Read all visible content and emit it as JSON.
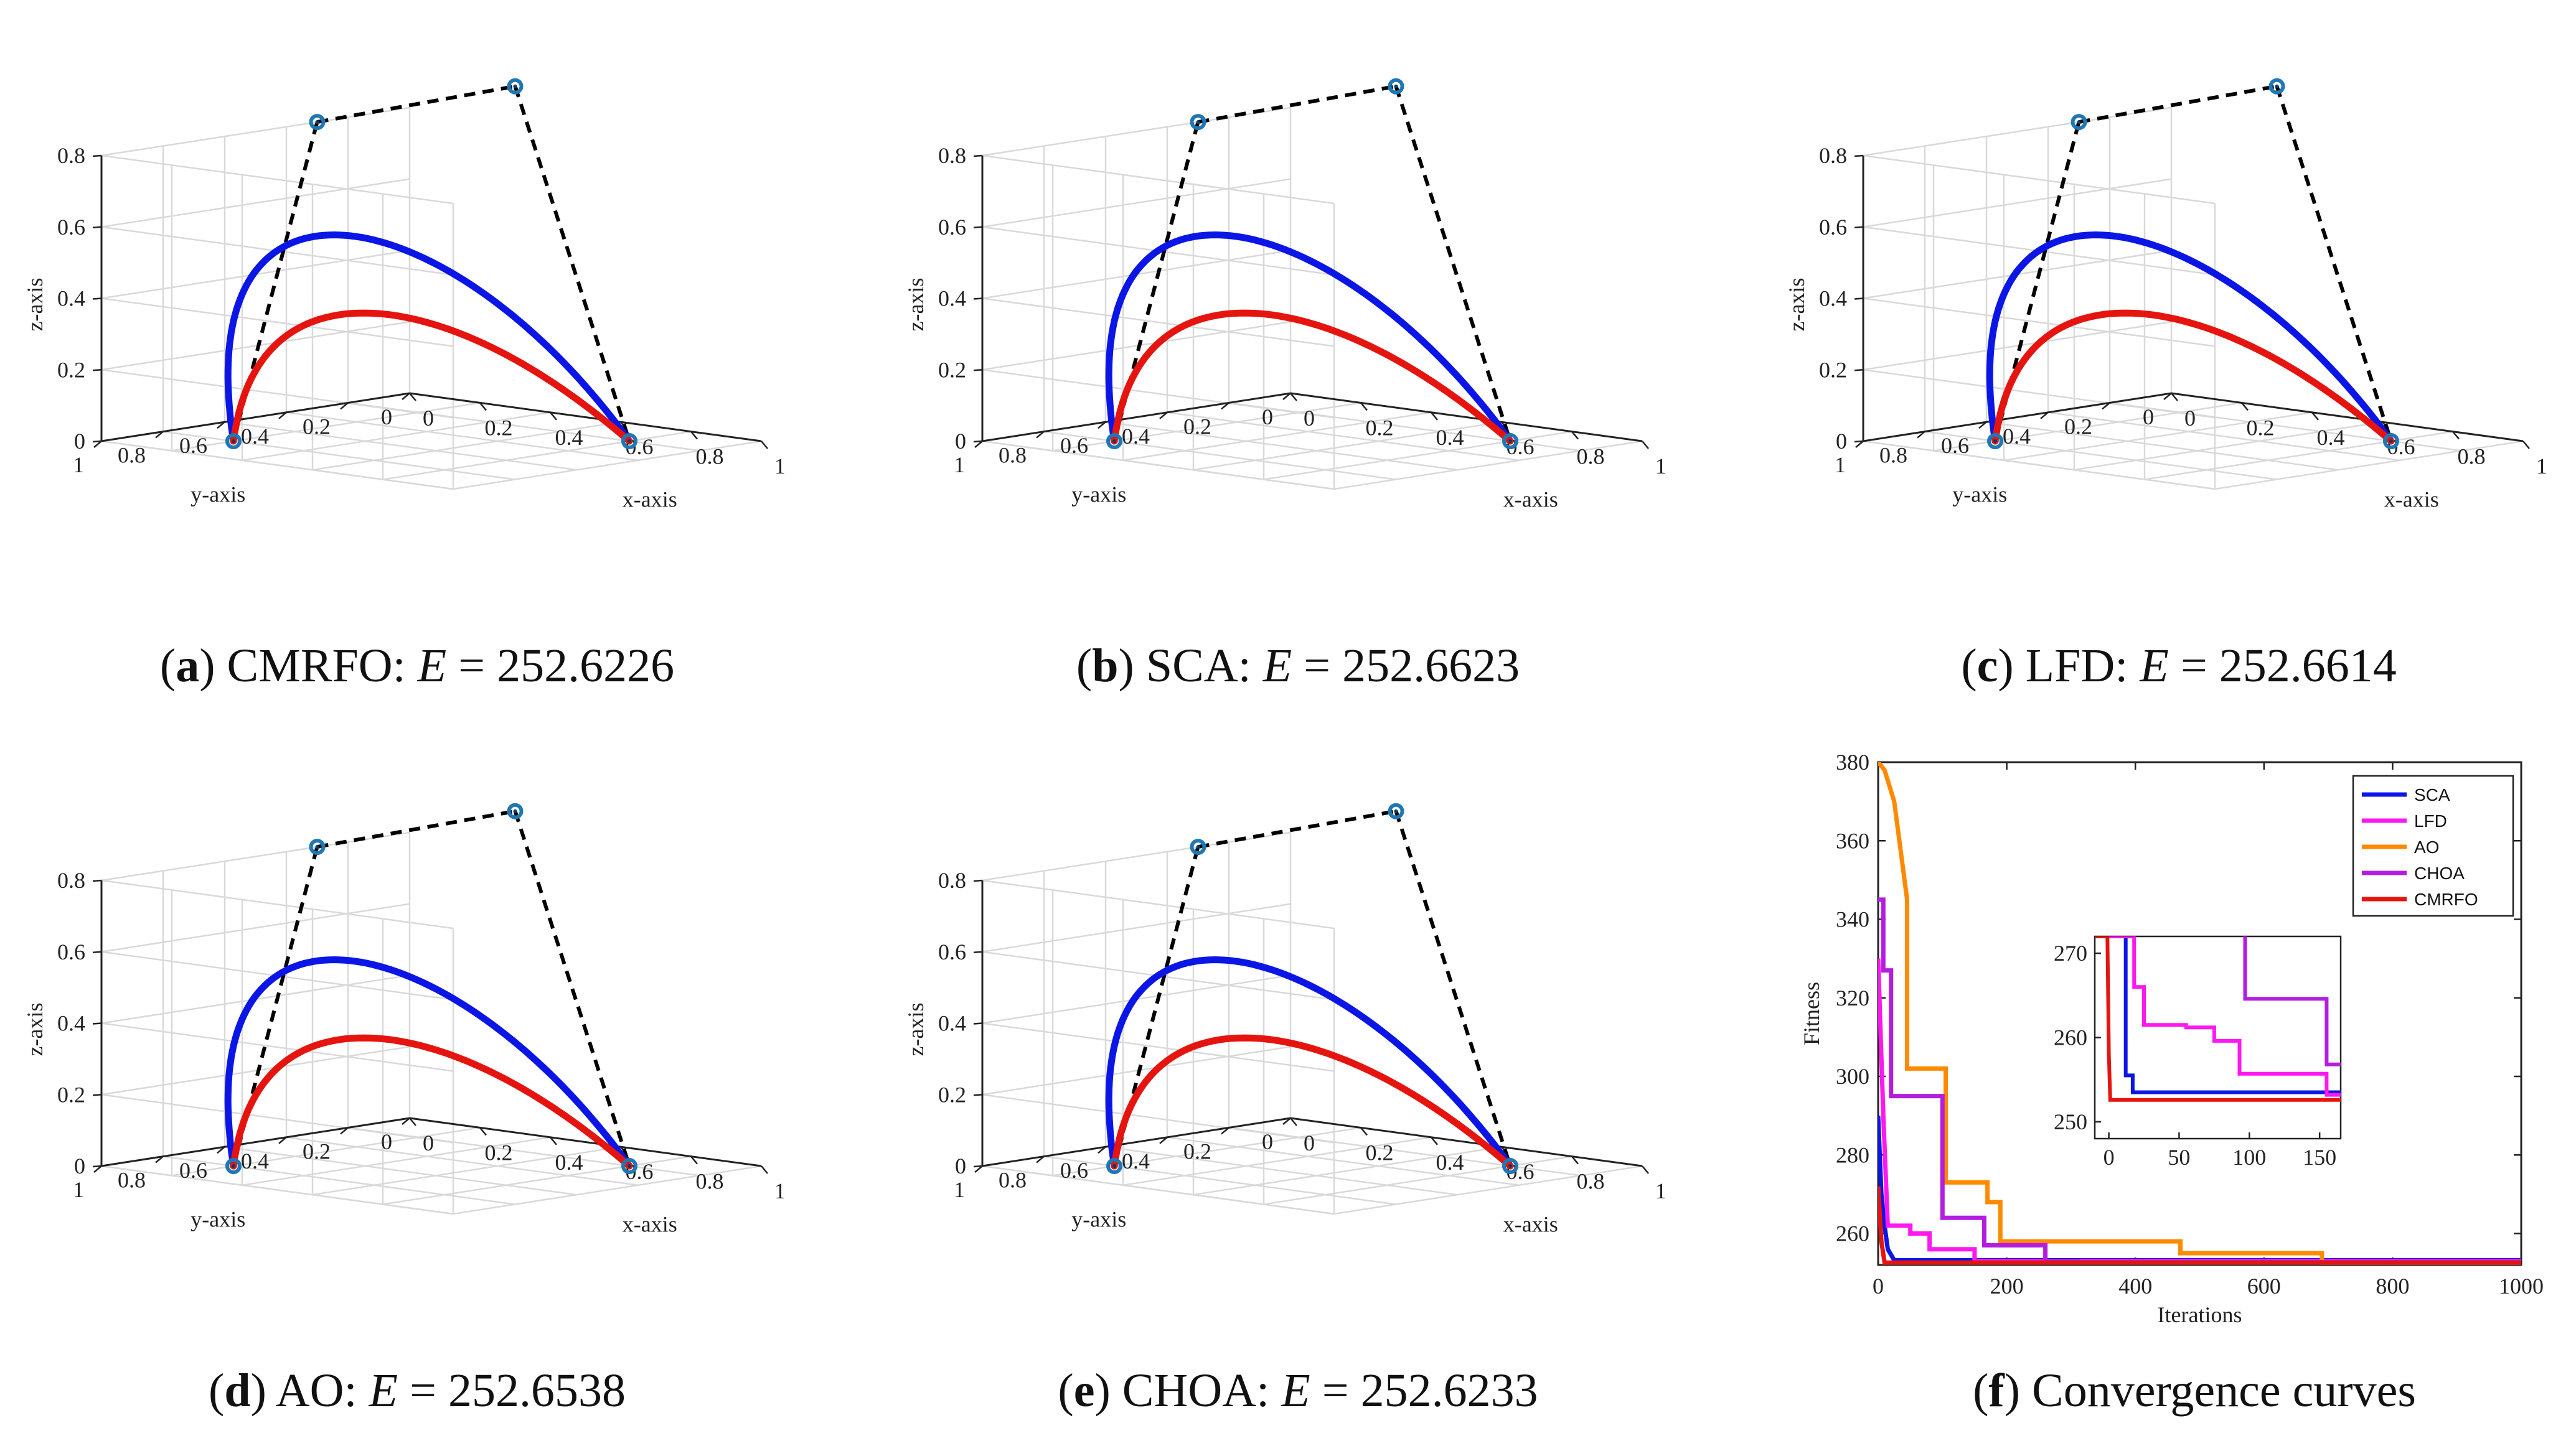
{
  "panels3d": [
    {
      "label": "a",
      "method": "CMRFO",
      "energy": "252.6226"
    },
    {
      "label": "b",
      "method": "SCA",
      "energy": "252.6623"
    },
    {
      "label": "c",
      "method": "LFD",
      "energy": "252.6614"
    },
    {
      "label": "d",
      "method": "AO",
      "energy": "252.6538"
    },
    {
      "label": "e",
      "method": "CHOA",
      "energy": "252.6233"
    }
  ],
  "axes3d": {
    "xlabel": "x-axis",
    "ylabel": "y-axis",
    "zlabel": "z-axis",
    "xticks": [
      "0",
      "0.2",
      "0.4",
      "0.6",
      "0.8",
      "1"
    ],
    "yticks": [
      "0",
      "0.2",
      "0.4",
      "0.6",
      "0.8",
      "1"
    ],
    "zticks": [
      "0",
      "0.2",
      "0.4",
      "0.6",
      "0.8"
    ]
  },
  "caption_f": {
    "label": "f",
    "text": "Convergence curves"
  },
  "chart_data": [
    {
      "type": "line3d",
      "axes": {
        "xlim": [
          0,
          1
        ],
        "ylim": [
          0,
          1
        ],
        "zlim": [
          0,
          0.8
        ],
        "grid": true
      },
      "control_polygon": [
        [
          0.2,
          0.8,
          0.0
        ],
        [
          0.0,
          0.3,
          0.8
        ],
        [
          0.3,
          0.0,
          0.9
        ],
        [
          0.8,
          0.2,
          0.0
        ]
      ],
      "colors": {
        "outer_curve": "#0b16e6",
        "inner_curve": "#e6140f",
        "control": "#000000",
        "marker": "#1f77b4"
      }
    },
    {
      "type": "line",
      "xlabel": "Iterations",
      "ylabel": "Fitness",
      "xlim": [
        0,
        1000
      ],
      "ylim": [
        252,
        380
      ],
      "xticks": [
        "0",
        "200",
        "400",
        "600",
        "800",
        "1000"
      ],
      "yticks": [
        "260",
        "280",
        "300",
        "320",
        "340",
        "360",
        "380"
      ],
      "legend_position": "top-right",
      "series": [
        {
          "name": "SCA",
          "color": "#0b16e6",
          "points": [
            [
              0,
              290
            ],
            [
              5,
              270
            ],
            [
              10,
              262
            ],
            [
              15,
              256
            ],
            [
              25,
              253.2
            ],
            [
              1000,
              253.2
            ]
          ]
        },
        {
          "name": "LFD",
          "color": "#ff17f0",
          "points": [
            [
              0,
              330
            ],
            [
              8,
              290
            ],
            [
              15,
              262
            ],
            [
              50,
              262
            ],
            [
              50,
              260
            ],
            [
              80,
              260
            ],
            [
              80,
              256
            ],
            [
              150,
              256
            ],
            [
              150,
              253
            ],
            [
              1000,
              253
            ]
          ]
        },
        {
          "name": "AO",
          "color": "#ff8a00",
          "points": [
            [
              0,
              380
            ],
            [
              10,
              378
            ],
            [
              25,
              370
            ],
            [
              45,
              345
            ],
            [
              45,
              302
            ],
            [
              105,
              302
            ],
            [
              105,
              273
            ],
            [
              170,
              273
            ],
            [
              170,
              268
            ],
            [
              190,
              268
            ],
            [
              190,
              258
            ],
            [
              470,
              258
            ],
            [
              470,
              255
            ],
            [
              690,
              255
            ],
            [
              690,
              252.6
            ],
            [
              1000,
              252.6
            ]
          ]
        },
        {
          "name": "CHOA",
          "color": "#b41de0",
          "points": [
            [
              0,
              345
            ],
            [
              8,
              345
            ],
            [
              8,
              327
            ],
            [
              20,
              327
            ],
            [
              20,
              295
            ],
            [
              100,
              295
            ],
            [
              100,
              264
            ],
            [
              165,
              264
            ],
            [
              165,
              257
            ],
            [
              260,
              257
            ],
            [
              260,
              253
            ],
            [
              310,
              253
            ],
            [
              310,
              252.7
            ],
            [
              1000,
              252.7
            ]
          ]
        },
        {
          "name": "CMRFO",
          "color": "#e6140f",
          "points": [
            [
              0,
              272
            ],
            [
              5,
              258
            ],
            [
              10,
              252.6
            ],
            [
              1000,
              252.6
            ]
          ]
        }
      ],
      "inset": {
        "xlim": [
          -10,
          165
        ],
        "ylim": [
          248,
          272
        ],
        "xticks": [
          "0",
          "50",
          "100",
          "150"
        ],
        "yticks": [
          "250",
          "260",
          "270"
        ],
        "series": [
          {
            "name": "SCA",
            "points": [
              [
                -10,
                272
              ],
              [
                12,
                272
              ],
              [
                12,
                255.5
              ],
              [
                17,
                255.5
              ],
              [
                17,
                253.5
              ],
              [
                165,
                253.5
              ]
            ]
          },
          {
            "name": "LFD",
            "points": [
              [
                -10,
                272
              ],
              [
                18,
                272
              ],
              [
                18,
                266
              ],
              [
                25,
                266
              ],
              [
                25,
                261.5
              ],
              [
                55,
                261.5
              ],
              [
                55,
                261.2
              ],
              [
                75,
                261.2
              ],
              [
                75,
                259.6
              ],
              [
                93,
                259.6
              ],
              [
                93,
                255.7
              ],
              [
                155,
                255.7
              ],
              [
                155,
                253.2
              ],
              [
                165,
                253.2
              ]
            ]
          },
          {
            "name": "CHOA",
            "points": [
              [
                97,
                272
              ],
              [
                97,
                264.6
              ],
              [
                155,
                264.6
              ],
              [
                155,
                256.8
              ],
              [
                165,
                256.8
              ]
            ]
          },
          {
            "name": "CMRFO",
            "points": [
              [
                -10,
                272
              ],
              [
                -1,
                272
              ],
              [
                0,
                258
              ],
              [
                1,
                252.6
              ],
              [
                165,
                252.6
              ]
            ]
          }
        ]
      }
    }
  ]
}
